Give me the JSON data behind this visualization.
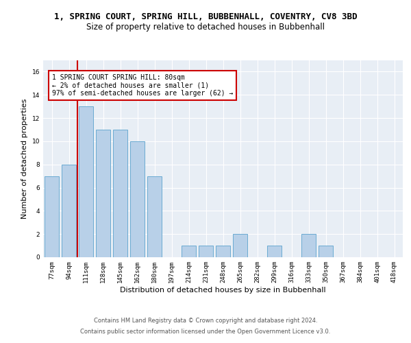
{
  "title": "1, SPRING COURT, SPRING HILL, BUBBENHALL, COVENTRY, CV8 3BD",
  "subtitle": "Size of property relative to detached houses in Bubbenhall",
  "xlabel": "Distribution of detached houses by size in Bubbenhall",
  "ylabel": "Number of detached properties",
  "categories": [
    "77sqm",
    "94sqm",
    "111sqm",
    "128sqm",
    "145sqm",
    "162sqm",
    "180sqm",
    "197sqm",
    "214sqm",
    "231sqm",
    "248sqm",
    "265sqm",
    "282sqm",
    "299sqm",
    "316sqm",
    "333sqm",
    "350sqm",
    "367sqm",
    "384sqm",
    "401sqm",
    "418sqm"
  ],
  "values": [
    7,
    8,
    13,
    11,
    11,
    10,
    7,
    0,
    1,
    1,
    1,
    2,
    0,
    1,
    0,
    2,
    1,
    0,
    0,
    0,
    0
  ],
  "bar_color": "#b8d0e8",
  "bar_edge_color": "#6aabd2",
  "annotation_box_text": "1 SPRING COURT SPRING HILL: 80sqm\n← 2% of detached houses are smaller (1)\n97% of semi-detached houses are larger (62) →",
  "vline_x": 1.5,
  "vline_color": "#cc0000",
  "ylim": [
    0,
    17
  ],
  "yticks": [
    0,
    2,
    4,
    6,
    8,
    10,
    12,
    14,
    16
  ],
  "plot_bg_color": "#e8eef5",
  "footer_line1": "Contains HM Land Registry data © Crown copyright and database right 2024.",
  "footer_line2": "Contains public sector information licensed under the Open Government Licence v3.0.",
  "title_fontsize": 9,
  "subtitle_fontsize": 8.5,
  "tick_fontsize": 6.5,
  "ylabel_fontsize": 8,
  "xlabel_fontsize": 8,
  "annotation_fontsize": 7,
  "footer_fontsize": 6
}
